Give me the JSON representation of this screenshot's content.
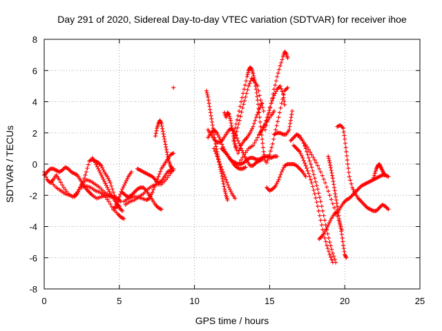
{
  "chart_data": {
    "type": "scatter",
    "title": "Day 291 of 2020, Sidereal Day-to-day VTEC variation (SDTVAR) for receiver ihoe",
    "xlabel": "GPS time / hours",
    "ylabel": "SDTVAR / TECUs",
    "xlim": [
      0,
      25
    ],
    "ylim": [
      -8,
      8
    ],
    "xticks": [
      "0",
      "5",
      "10",
      "15",
      "20",
      "25"
    ],
    "yticks": [
      "-8",
      "-6",
      "-4",
      "-2",
      "0",
      "2",
      "4",
      "6",
      "8"
    ],
    "grid": true,
    "marker": "+",
    "color": "#ff0000",
    "points": [
      [
        0.0,
        -0.5
      ],
      [
        0.2,
        -1.0
      ],
      [
        0.4,
        -1.2
      ],
      [
        0.6,
        -1.0
      ],
      [
        0.8,
        -0.7
      ],
      [
        1.0,
        -1.0
      ],
      [
        1.3,
        -1.5
      ],
      [
        1.6,
        -1.9
      ],
      [
        1.9,
        -2.1
      ],
      [
        2.2,
        -1.8
      ],
      [
        2.5,
        -1.3
      ],
      [
        2.8,
        -1.0
      ],
      [
        3.1,
        -1.1
      ],
      [
        3.4,
        -1.3
      ],
      [
        3.7,
        -1.5
      ],
      [
        4.0,
        -1.8
      ],
      [
        4.3,
        -2.0
      ],
      [
        4.6,
        -2.1
      ],
      [
        4.9,
        -2.2
      ],
      [
        5.1,
        -2.4
      ],
      [
        0.0,
        -0.7
      ],
      [
        0.2,
        -0.5
      ],
      [
        0.4,
        -0.3
      ],
      [
        0.6,
        -0.3
      ],
      [
        0.8,
        -0.4
      ],
      [
        1.0,
        -0.5
      ],
      [
        1.2,
        -0.4
      ],
      [
        1.4,
        -0.2
      ],
      [
        1.6,
        -0.3
      ],
      [
        1.8,
        -0.5
      ],
      [
        2.0,
        -0.6
      ],
      [
        2.2,
        -0.7
      ],
      [
        2.4,
        -1.0
      ],
      [
        2.6,
        -1.3
      ],
      [
        2.8,
        -1.6
      ],
      [
        3.0,
        -1.8
      ],
      [
        3.2,
        -2.0
      ],
      [
        3.5,
        -2.2
      ],
      [
        3.8,
        -2.1
      ],
      [
        4.1,
        -2.0
      ],
      [
        4.4,
        -2.1
      ],
      [
        4.7,
        -2.1
      ],
      [
        0.5,
        -1.2
      ],
      [
        0.8,
        -1.5
      ],
      [
        1.1,
        -1.7
      ],
      [
        1.4,
        -1.9
      ],
      [
        1.7,
        -2.0
      ],
      [
        2.0,
        -2.1
      ],
      [
        2.2,
        -1.9
      ],
      [
        2.4,
        -1.5
      ],
      [
        2.6,
        -1.1
      ],
      [
        2.8,
        -0.5
      ],
      [
        3.0,
        0.2
      ],
      [
        3.2,
        0.3
      ],
      [
        3.4,
        0.2
      ],
      [
        3.6,
        0.1
      ],
      [
        3.8,
        -0.1
      ],
      [
        4.0,
        -0.5
      ],
      [
        4.2,
        -0.8
      ],
      [
        4.4,
        -1.2
      ],
      [
        4.6,
        -1.8
      ],
      [
        4.8,
        -2.4
      ],
      [
        5.0,
        -2.8
      ],
      [
        5.2,
        -3.0
      ],
      [
        2.5,
        -1.5
      ],
      [
        2.8,
        -1.4
      ],
      [
        3.1,
        -1.5
      ],
      [
        3.4,
        -1.7
      ],
      [
        3.7,
        -1.8
      ],
      [
        4.0,
        -2.0
      ],
      [
        4.3,
        -2.4
      ],
      [
        4.6,
        -2.9
      ],
      [
        4.9,
        -3.2
      ],
      [
        5.1,
        -3.4
      ],
      [
        5.3,
        -3.5
      ],
      [
        3.2,
        0.4
      ],
      [
        3.4,
        0.1
      ],
      [
        3.6,
        -0.3
      ],
      [
        3.8,
        -0.7
      ],
      [
        4.0,
        -1.1
      ],
      [
        4.2,
        -1.5
      ],
      [
        4.4,
        -1.9
      ],
      [
        4.6,
        -2.2
      ],
      [
        4.8,
        -2.5
      ],
      [
        5.0,
        -2.7
      ],
      [
        4.6,
        -2.9
      ],
      [
        4.8,
        -2.6
      ],
      [
        5.0,
        -2.1
      ],
      [
        5.2,
        -1.6
      ],
      [
        5.4,
        -1.2
      ],
      [
        5.6,
        -0.8
      ],
      [
        5.8,
        -0.5
      ],
      [
        5.2,
        -1.8
      ],
      [
        5.4,
        -2.0
      ],
      [
        5.6,
        -2.1
      ],
      [
        5.8,
        -2.0
      ],
      [
        6.0,
        -1.8
      ],
      [
        6.2,
        -1.6
      ],
      [
        6.4,
        -1.5
      ],
      [
        6.6,
        -1.5
      ],
      [
        6.8,
        -1.7
      ],
      [
        7.0,
        -2.0
      ],
      [
        7.2,
        -2.3
      ],
      [
        7.4,
        -2.6
      ],
      [
        7.6,
        -2.8
      ],
      [
        7.8,
        -2.9
      ],
      [
        5.3,
        -2.4
      ],
      [
        5.6,
        -2.2
      ],
      [
        5.9,
        -2.1
      ],
      [
        6.2,
        -2.1
      ],
      [
        6.5,
        -2.2
      ],
      [
        6.8,
        -2.3
      ],
      [
        7.0,
        -2.2
      ],
      [
        7.2,
        -1.8
      ],
      [
        7.4,
        -1.3
      ],
      [
        7.6,
        -0.8
      ],
      [
        7.8,
        -0.3
      ],
      [
        8.0,
        0.0
      ],
      [
        8.2,
        0.3
      ],
      [
        8.4,
        0.6
      ],
      [
        8.6,
        0.7
      ],
      [
        5.4,
        -2.6
      ],
      [
        5.7,
        -2.4
      ],
      [
        6.0,
        -2.3
      ],
      [
        6.3,
        -2.1
      ],
      [
        6.6,
        -1.9
      ],
      [
        6.9,
        -1.6
      ],
      [
        7.2,
        -1.4
      ],
      [
        7.5,
        -1.3
      ],
      [
        7.8,
        -1.3
      ],
      [
        8.1,
        -1.0
      ],
      [
        8.4,
        -0.6
      ],
      [
        8.6,
        -0.3
      ],
      [
        6.2,
        -0.3
      ],
      [
        6.4,
        -0.4
      ],
      [
        6.6,
        -0.5
      ],
      [
        6.8,
        -0.6
      ],
      [
        7.0,
        -0.7
      ],
      [
        7.2,
        -0.8
      ],
      [
        7.4,
        -1.0
      ],
      [
        7.6,
        -1.2
      ],
      [
        7.8,
        -1.1
      ],
      [
        8.0,
        -0.8
      ],
      [
        8.2,
        -0.5
      ],
      [
        8.4,
        -0.4
      ],
      [
        8.6,
        -0.4
      ],
      [
        7.4,
        1.8
      ],
      [
        7.5,
        2.3
      ],
      [
        7.6,
        2.6
      ],
      [
        7.7,
        2.8
      ],
      [
        7.8,
        2.6
      ],
      [
        7.9,
        2.1
      ],
      [
        8.0,
        1.6
      ],
      [
        8.1,
        1.1
      ],
      [
        8.2,
        0.6
      ],
      [
        8.3,
        0.2
      ],
      [
        8.4,
        -0.1
      ],
      [
        8.5,
        -0.3
      ],
      [
        8.6,
        4.9
      ],
      [
        10.8,
        4.7
      ],
      [
        10.9,
        4.3
      ],
      [
        11.0,
        3.7
      ],
      [
        11.1,
        3.1
      ],
      [
        11.2,
        2.5
      ],
      [
        11.3,
        1.9
      ],
      [
        11.4,
        1.3
      ],
      [
        11.5,
        0.8
      ],
      [
        11.6,
        0.3
      ],
      [
        11.7,
        -0.2
      ],
      [
        11.8,
        -0.6
      ],
      [
        11.9,
        -1.1
      ],
      [
        12.0,
        -1.6
      ],
      [
        12.1,
        -2.0
      ],
      [
        12.2,
        -2.3
      ],
      [
        10.9,
        1.7
      ],
      [
        11.1,
        2.0
      ],
      [
        11.3,
        2.2
      ],
      [
        11.5,
        2.0
      ],
      [
        11.7,
        1.6
      ],
      [
        11.9,
        1.1
      ],
      [
        12.1,
        0.7
      ],
      [
        12.3,
        0.4
      ],
      [
        12.5,
        0.2
      ],
      [
        12.7,
        0.1
      ],
      [
        12.9,
        0.0
      ],
      [
        13.1,
        0.0
      ],
      [
        13.3,
        0.1
      ],
      [
        13.5,
        0.3
      ],
      [
        13.7,
        0.4
      ],
      [
        13.9,
        0.4
      ],
      [
        14.1,
        0.3
      ],
      [
        14.3,
        0.3
      ],
      [
        14.5,
        0.4
      ],
      [
        14.7,
        0.5
      ],
      [
        14.9,
        0.5
      ],
      [
        15.1,
        0.4
      ],
      [
        15.3,
        0.5
      ],
      [
        15.5,
        0.5
      ],
      [
        10.9,
        2.2
      ],
      [
        11.1,
        1.9
      ],
      [
        11.3,
        1.6
      ],
      [
        11.5,
        1.4
      ],
      [
        11.7,
        1.4
      ],
      [
        11.9,
        1.6
      ],
      [
        12.1,
        1.9
      ],
      [
        12.3,
        2.2
      ],
      [
        12.5,
        2.3
      ],
      [
        12.7,
        2.0
      ],
      [
        12.9,
        1.5
      ],
      [
        13.1,
        1.0
      ],
      [
        13.3,
        0.6
      ],
      [
        13.5,
        0.2
      ],
      [
        13.7,
        -0.1
      ],
      [
        13.9,
        -0.1
      ],
      [
        14.1,
        0.1
      ],
      [
        14.3,
        0.2
      ],
      [
        14.5,
        0.3
      ],
      [
        11.3,
        1.0
      ],
      [
        11.5,
        0.5
      ],
      [
        11.7,
        0.0
      ],
      [
        11.9,
        -0.5
      ],
      [
        12.1,
        -1.0
      ],
      [
        12.3,
        -1.5
      ],
      [
        12.5,
        -1.9
      ],
      [
        12.7,
        -2.2
      ],
      [
        11.8,
        1.0
      ],
      [
        12.0,
        0.8
      ],
      [
        12.2,
        0.6
      ],
      [
        12.4,
        0.3
      ],
      [
        12.6,
        0.0
      ],
      [
        12.8,
        -0.2
      ],
      [
        13.0,
        -0.3
      ],
      [
        13.2,
        -0.3
      ],
      [
        13.4,
        -0.2
      ],
      [
        12.0,
        3.3
      ],
      [
        12.1,
        3.0
      ],
      [
        12.2,
        3.3
      ],
      [
        12.3,
        3.2
      ],
      [
        12.4,
        2.8
      ],
      [
        12.5,
        2.3
      ],
      [
        12.6,
        1.8
      ],
      [
        12.7,
        1.3
      ],
      [
        12.8,
        0.9
      ],
      [
        12.6,
        1.5
      ],
      [
        12.8,
        2.1
      ],
      [
        13.0,
        2.8
      ],
      [
        13.2,
        3.6
      ],
      [
        13.4,
        4.3
      ],
      [
        13.6,
        5.0
      ],
      [
        13.8,
        5.5
      ],
      [
        14.0,
        5.3
      ],
      [
        14.2,
        5.0
      ],
      [
        14.4,
        4.1
      ],
      [
        14.6,
        3.4
      ],
      [
        12.7,
        2.3
      ],
      [
        12.9,
        3.1
      ],
      [
        13.1,
        4.0
      ],
      [
        13.3,
        4.8
      ],
      [
        13.5,
        5.6
      ],
      [
        13.6,
        6.0
      ],
      [
        13.7,
        6.2
      ],
      [
        13.8,
        6.1
      ],
      [
        13.9,
        5.8
      ],
      [
        14.0,
        5.4
      ],
      [
        14.1,
        4.8
      ],
      [
        14.2,
        4.1
      ],
      [
        14.3,
        3.3
      ],
      [
        14.4,
        2.4
      ],
      [
        14.5,
        1.6
      ],
      [
        14.6,
        0.8
      ],
      [
        14.7,
        0.2
      ],
      [
        12.9,
        0.7
      ],
      [
        13.1,
        1.2
      ],
      [
        13.3,
        1.5
      ],
      [
        13.5,
        1.7
      ],
      [
        13.7,
        2.0
      ],
      [
        13.9,
        2.4
      ],
      [
        14.1,
        3.0
      ],
      [
        14.3,
        3.5
      ],
      [
        14.5,
        3.9
      ],
      [
        13.0,
        0.1
      ],
      [
        13.3,
        0.6
      ],
      [
        13.6,
        1.0
      ],
      [
        13.9,
        1.2
      ],
      [
        14.2,
        1.7
      ],
      [
        14.5,
        2.2
      ],
      [
        14.8,
        2.7
      ],
      [
        15.1,
        3.1
      ],
      [
        15.3,
        3.4
      ],
      [
        14.3,
        1.9
      ],
      [
        14.5,
        2.2
      ],
      [
        14.7,
        2.6
      ],
      [
        14.9,
        3.2
      ],
      [
        15.1,
        3.9
      ],
      [
        15.3,
        4.4
      ],
      [
        15.5,
        4.8
      ],
      [
        15.7,
        5.0
      ],
      [
        15.9,
        4.5
      ],
      [
        16.0,
        3.8
      ],
      [
        14.7,
        2.2
      ],
      [
        14.9,
        3.0
      ],
      [
        15.1,
        3.9
      ],
      [
        15.3,
        4.8
      ],
      [
        15.5,
        5.6
      ],
      [
        15.7,
        6.3
      ],
      [
        15.9,
        6.9
      ],
      [
        16.0,
        7.2
      ],
      [
        16.1,
        7.1
      ],
      [
        16.2,
        6.8
      ],
      [
        14.8,
        0.1
      ],
      [
        15.0,
        0.6
      ],
      [
        15.2,
        1.3
      ],
      [
        15.4,
        2.2
      ],
      [
        15.6,
        3.0
      ],
      [
        15.8,
        3.9
      ],
      [
        16.0,
        4.7
      ],
      [
        16.2,
        4.9
      ],
      [
        14.8,
        -1.5
      ],
      [
        15.0,
        -1.7
      ],
      [
        15.2,
        -1.6
      ],
      [
        15.4,
        -1.4
      ],
      [
        15.6,
        -1.0
      ],
      [
        15.8,
        -0.5
      ],
      [
        16.0,
        -0.1
      ],
      [
        16.2,
        0.0
      ],
      [
        16.4,
        0.0
      ],
      [
        16.6,
        0.0
      ],
      [
        16.8,
        -0.1
      ],
      [
        17.0,
        -0.3
      ],
      [
        17.2,
        -0.5
      ],
      [
        17.4,
        -0.8
      ],
      [
        15.3,
        1.9
      ],
      [
        15.5,
        2.0
      ],
      [
        15.7,
        2.0
      ],
      [
        15.9,
        1.9
      ],
      [
        16.1,
        1.9
      ],
      [
        16.3,
        2.2
      ],
      [
        16.4,
        2.8
      ],
      [
        16.5,
        3.4
      ],
      [
        16.4,
        1.5
      ],
      [
        16.6,
        1.7
      ],
      [
        16.8,
        1.9
      ],
      [
        17.0,
        1.8
      ],
      [
        17.2,
        1.5
      ],
      [
        17.4,
        1.0
      ],
      [
        17.6,
        0.4
      ],
      [
        17.8,
        -0.2
      ],
      [
        18.0,
        -0.9
      ],
      [
        18.2,
        -1.6
      ],
      [
        18.4,
        -2.4
      ],
      [
        18.6,
        -3.3
      ],
      [
        18.8,
        -4.2
      ],
      [
        19.0,
        -5.0
      ],
      [
        19.2,
        -5.7
      ],
      [
        19.4,
        -6.3
      ],
      [
        16.6,
        1.2
      ],
      [
        16.8,
        1.0
      ],
      [
        17.0,
        0.8
      ],
      [
        17.2,
        0.4
      ],
      [
        17.4,
        -0.1
      ],
      [
        17.6,
        -0.6
      ],
      [
        17.8,
        -1.2
      ],
      [
        18.0,
        -1.9
      ],
      [
        18.2,
        -2.7
      ],
      [
        18.4,
        -3.6
      ],
      [
        18.6,
        -4.5
      ],
      [
        18.8,
        -5.2
      ],
      [
        19.0,
        -5.8
      ],
      [
        19.2,
        -6.3
      ],
      [
        16.9,
        1.8
      ],
      [
        17.2,
        1.5
      ],
      [
        17.5,
        1.1
      ],
      [
        17.8,
        0.6
      ],
      [
        18.1,
        0.1
      ],
      [
        18.4,
        -0.5
      ],
      [
        18.7,
        -1.2
      ],
      [
        19.0,
        -2.0
      ],
      [
        19.3,
        -2.8
      ],
      [
        19.6,
        -3.6
      ],
      [
        19.8,
        -4.2
      ],
      [
        18.9,
        0.5
      ],
      [
        19.0,
        0.1
      ],
      [
        19.1,
        -0.4
      ],
      [
        19.2,
        -0.9
      ],
      [
        19.3,
        -1.5
      ],
      [
        19.4,
        -2.1
      ],
      [
        19.5,
        -2.7
      ],
      [
        19.6,
        -3.3
      ],
      [
        19.7,
        -3.9
      ],
      [
        19.8,
        -4.5
      ],
      [
        19.9,
        -5.2
      ],
      [
        20.0,
        -5.8
      ],
      [
        20.1,
        -6.0
      ],
      [
        18.3,
        -4.8
      ],
      [
        18.5,
        -4.6
      ],
      [
        18.7,
        -4.3
      ],
      [
        18.9,
        -3.9
      ],
      [
        19.1,
        -3.5
      ],
      [
        19.3,
        -3.2
      ],
      [
        19.5,
        -3.1
      ],
      [
        19.7,
        -2.8
      ],
      [
        19.9,
        -2.5
      ],
      [
        20.1,
        -2.3
      ],
      [
        20.3,
        -2.2
      ],
      [
        20.5,
        -2.0
      ],
      [
        20.7,
        -1.8
      ],
      [
        20.9,
        -1.6
      ],
      [
        21.1,
        -1.4
      ],
      [
        21.3,
        -1.3
      ],
      [
        21.5,
        -1.2
      ],
      [
        21.7,
        -1.1
      ],
      [
        21.9,
        -1.0
      ],
      [
        22.1,
        -0.9
      ],
      [
        22.3,
        -0.8
      ],
      [
        22.5,
        -0.7
      ],
      [
        22.7,
        -0.7
      ],
      [
        22.9,
        -0.8
      ],
      [
        19.5,
        2.4
      ],
      [
        19.7,
        2.5
      ],
      [
        19.9,
        2.3
      ],
      [
        20.0,
        1.6
      ],
      [
        20.1,
        0.8
      ],
      [
        20.2,
        0.0
      ],
      [
        20.3,
        -0.8
      ],
      [
        20.5,
        -1.5
      ],
      [
        20.7,
        -1.9
      ],
      [
        20.9,
        -2.2
      ],
      [
        21.1,
        -2.4
      ],
      [
        21.3,
        -2.6
      ],
      [
        21.5,
        -2.8
      ],
      [
        21.7,
        -2.9
      ],
      [
        21.9,
        -3.0
      ],
      [
        22.1,
        -3.0
      ],
      [
        22.3,
        -2.8
      ],
      [
        22.5,
        -2.6
      ],
      [
        22.7,
        -2.7
      ],
      [
        22.9,
        -2.9
      ],
      [
        21.9,
        -1.0
      ],
      [
        22.0,
        -0.6
      ],
      [
        22.1,
        -0.3
      ],
      [
        22.2,
        -0.1
      ],
      [
        22.3,
        0.0
      ],
      [
        22.4,
        -0.2
      ],
      [
        22.5,
        -0.4
      ],
      [
        22.6,
        -0.6
      ],
      [
        22.7,
        -0.7
      ]
    ]
  }
}
